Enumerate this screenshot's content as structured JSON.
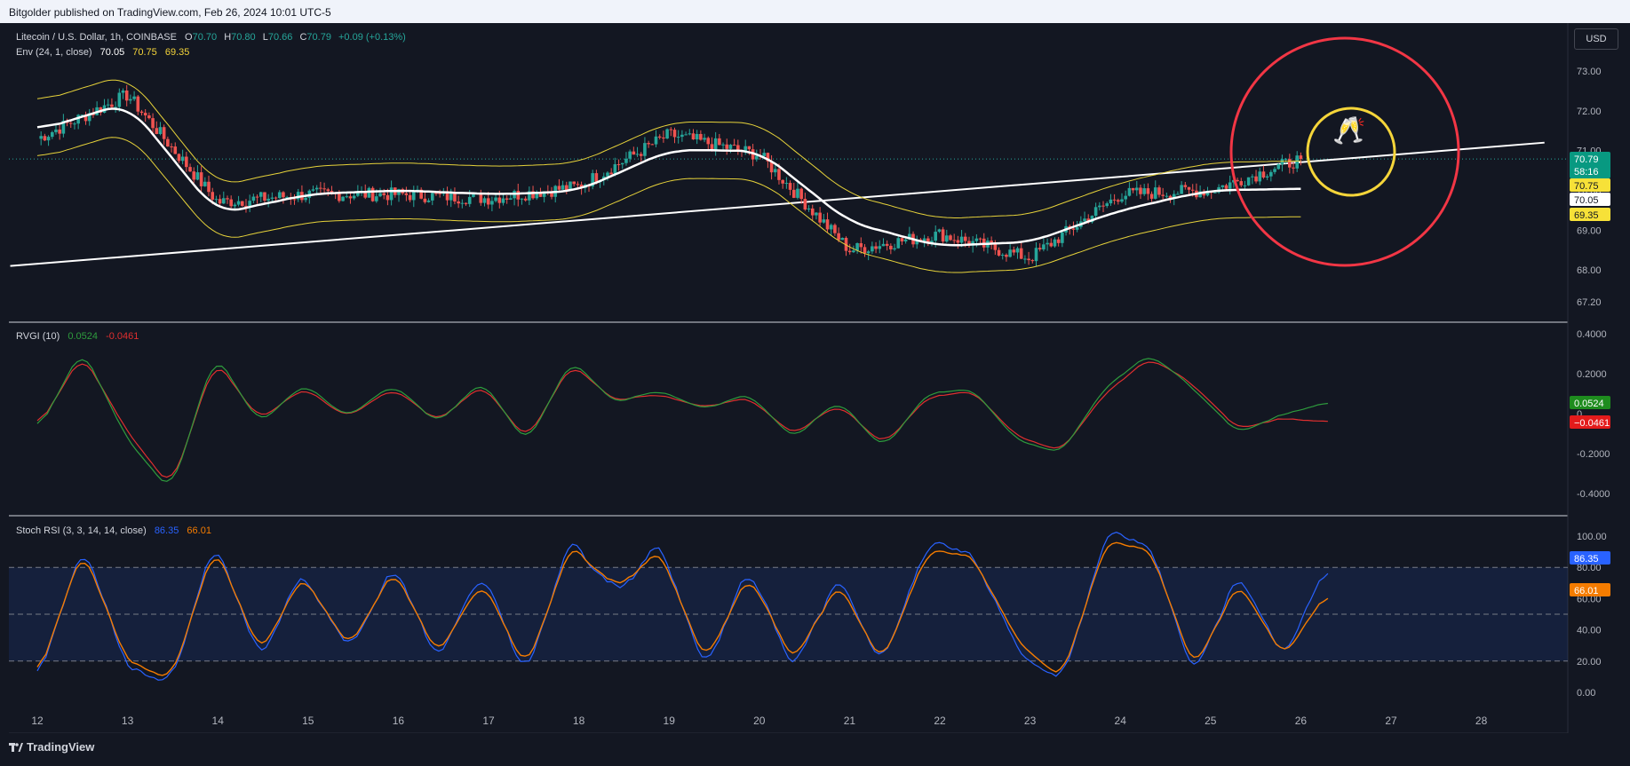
{
  "header": {
    "published_by": "Bitgolder published on TradingView.com, Feb 26, 2024 10:01 UTC-5"
  },
  "currency_button": "USD",
  "footer": {
    "logo_text": "TradingView"
  },
  "colors": {
    "background": "#131722",
    "up": "#26a69a",
    "down": "#ef5350",
    "envelope": "#e6d23a",
    "basis": "#ffffff",
    "rvgi": "#2e9c3d",
    "rvgi_signal": "#e02f2f",
    "stoch_k": "#2962ff",
    "stoch_d": "#f57c00",
    "highlight_big": "#f23645",
    "highlight_small": "#f5d53a"
  },
  "panes": {
    "price": {
      "legend_title": "Litecoin / U.S. Dollar, 1h, COINBASE",
      "ohlc": {
        "O": "70.70",
        "H": "70.80",
        "L": "70.66",
        "C": "70.79",
        "change": "+0.09 (+0.13%)"
      },
      "ohlc_labels": {
        "o": "O",
        "h": "H",
        "l": "L",
        "c": "C"
      },
      "env_title": "Env (24, 1, close)",
      "env_values": [
        "70.05",
        "70.75",
        "69.35"
      ],
      "ticks": [
        "73.00",
        "72.00",
        "71.00",
        "70.00",
        "69.00",
        "68.00",
        "67.20"
      ],
      "badges": [
        {
          "text": "70.79",
          "sub": "58:16",
          "color": "#089981",
          "fg": "#ffffff"
        },
        {
          "text": "70.75",
          "color": "#f7e138",
          "fg": "#131722"
        },
        {
          "text": "70.05",
          "color": "#ffffff",
          "fg": "#131722"
        },
        {
          "text": "69.35",
          "color": "#f7e138",
          "fg": "#131722"
        }
      ],
      "emoji": "🥂"
    },
    "rvgi": {
      "title": "RVGI (10)",
      "values": [
        "0.0524",
        "-0.0461"
      ],
      "ticks": [
        "0.4000",
        "0.2000",
        "0",
        "-0.2000",
        "-0.4000"
      ],
      "badges": [
        {
          "text": "0.0524",
          "color": "#1e8c1e"
        },
        {
          "text": "−0.0461",
          "color": "#e31b1b"
        }
      ]
    },
    "stoch": {
      "title": "Stoch RSI (3, 3, 14, 14, close)",
      "values": [
        "86.35",
        "66.01"
      ],
      "ticks": [
        "100.00",
        "80.00",
        "60.00",
        "40.00",
        "20.00",
        "0.00"
      ],
      "badges": [
        {
          "text": "86.35",
          "color": "#2962ff"
        },
        {
          "text": "66.01",
          "color": "#f57c00"
        }
      ]
    }
  },
  "x_axis": {
    "labels": [
      "12",
      "13",
      "14",
      "15",
      "16",
      "17",
      "18",
      "19",
      "20",
      "21",
      "22",
      "23",
      "24",
      "25",
      "26",
      "27",
      "28"
    ]
  },
  "chart_data": [
    {
      "type": "line",
      "pane": "price",
      "title": "Litecoin / U.S. Dollar, 1h, COINBASE",
      "x": [
        "12",
        "13",
        "14",
        "15",
        "16",
        "17",
        "18",
        "19",
        "20",
        "21",
        "22",
        "23",
        "24",
        "25",
        "26"
      ],
      "ylim": [
        67.2,
        73.2
      ],
      "series": [
        {
          "name": "Close",
          "values": [
            71.3,
            72.4,
            69.7,
            69.9,
            69.9,
            69.8,
            70.1,
            71.4,
            70.9,
            68.5,
            68.9,
            68.3,
            69.9,
            70.0,
            70.79
          ]
        },
        {
          "name": "Env basis",
          "values": [
            71.5,
            72.2,
            69.4,
            69.9,
            70.0,
            69.9,
            70.0,
            71.0,
            71.0,
            69.2,
            68.6,
            68.7,
            69.5,
            70.0,
            70.05
          ]
        },
        {
          "name": "Env upper",
          "values": [
            72.2,
            72.9,
            70.1,
            70.6,
            70.7,
            70.6,
            70.7,
            71.7,
            71.7,
            69.9,
            69.3,
            69.4,
            70.2,
            70.7,
            70.75
          ]
        },
        {
          "name": "Env lower",
          "values": [
            70.8,
            71.5,
            68.7,
            69.2,
            69.3,
            69.2,
            69.3,
            70.3,
            70.3,
            68.5,
            67.9,
            68.0,
            68.8,
            69.3,
            69.35
          ]
        }
      ],
      "trendline": {
        "x": [
          "11.7",
          "28.7"
        ],
        "y": [
          68.1,
          71.2
        ]
      }
    },
    {
      "type": "line",
      "pane": "rvgi",
      "title": "RVGI (10)",
      "ylim": [
        -0.5,
        0.46
      ],
      "x": [
        "12",
        "12.5",
        "13",
        "13.5",
        "14",
        "14.5",
        "15",
        "15.5",
        "16",
        "16.5",
        "17",
        "17.5",
        "18",
        "18.5",
        "19",
        "19.5",
        "20",
        "20.5",
        "21",
        "21.5",
        "22",
        "22.5",
        "23",
        "23.5",
        "24",
        "24.5",
        "25",
        "25.5",
        "26",
        "26.3"
      ],
      "series": [
        {
          "name": "RVGI",
          "values": [
            -0.1,
            0.33,
            -0.12,
            -0.4,
            0.3,
            -0.05,
            0.15,
            -0.02,
            0.15,
            -0.05,
            0.17,
            -0.15,
            0.27,
            0.05,
            0.12,
            0.02,
            0.1,
            -0.13,
            0.07,
            -0.18,
            0.1,
            0.12,
            -0.13,
            -0.2,
            0.13,
            0.3,
            0.12,
            -0.1,
            0.0,
            0.0524
          ]
        },
        {
          "name": "Signal",
          "values": [
            -0.08,
            0.3,
            -0.08,
            -0.38,
            0.27,
            -0.03,
            0.13,
            -0.02,
            0.13,
            -0.04,
            0.15,
            -0.13,
            0.25,
            0.06,
            0.1,
            0.03,
            0.08,
            -0.11,
            0.05,
            -0.16,
            0.08,
            0.11,
            -0.11,
            -0.19,
            0.1,
            0.28,
            0.14,
            -0.08,
            -0.02,
            -0.0461
          ]
        }
      ]
    },
    {
      "type": "line",
      "pane": "stoch",
      "title": "Stoch RSI (3, 3, 14, 14, close)",
      "ylim": [
        -5,
        105
      ],
      "x": [
        "12",
        "12.5",
        "13",
        "13.5",
        "14",
        "14.5",
        "15",
        "15.5",
        "16",
        "16.5",
        "17",
        "17.5",
        "18",
        "18.5",
        "19",
        "19.5",
        "20",
        "20.5",
        "21",
        "21.5",
        "22",
        "22.5",
        "23",
        "23.5",
        "24",
        "24.5",
        "25",
        "25.5",
        "26",
        "26.3"
      ],
      "series": [
        {
          "name": "K",
          "values": [
            5,
            95,
            15,
            5,
            100,
            20,
            80,
            25,
            85,
            20,
            75,
            10,
            100,
            65,
            95,
            15,
            80,
            15,
            75,
            15,
            95,
            90,
            30,
            5,
            100,
            95,
            10,
            80,
            15,
            86.35
          ]
        },
        {
          "name": "D",
          "values": [
            8,
            92,
            20,
            8,
            95,
            25,
            76,
            28,
            80,
            24,
            70,
            15,
            95,
            68,
            90,
            20,
            75,
            20,
            70,
            18,
            90,
            88,
            35,
            8,
            95,
            92,
            15,
            72,
            20,
            66.01
          ]
        }
      ],
      "bands": [
        20,
        50,
        80
      ]
    }
  ]
}
